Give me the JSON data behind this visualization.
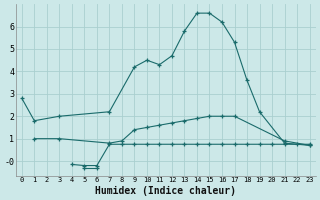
{
  "xlabel": "Humidex (Indice chaleur)",
  "bg_color": "#cce8e8",
  "grid_color": "#aacfcf",
  "line_color": "#1a6b6b",
  "xlim": [
    -0.5,
    23.5
  ],
  "ylim": [
    -0.65,
    7.0
  ],
  "yticks": [
    0,
    1,
    2,
    3,
    4,
    5,
    6
  ],
  "ytick_labels": [
    "-0",
    "1",
    "2",
    "3",
    "4",
    "5",
    "6"
  ],
  "xticks": [
    0,
    1,
    2,
    3,
    4,
    5,
    6,
    7,
    8,
    9,
    10,
    11,
    12,
    13,
    14,
    15,
    16,
    17,
    18,
    19,
    20,
    21,
    22,
    23
  ],
  "series": [
    {
      "x": [
        0,
        1,
        3,
        7,
        9,
        10,
        11,
        12,
        13,
        14,
        15,
        16,
        17,
        18,
        19,
        21,
        23
      ],
      "y": [
        2.8,
        1.8,
        2.0,
        2.2,
        4.2,
        4.5,
        4.3,
        4.7,
        5.8,
        6.6,
        6.6,
        6.2,
        5.3,
        3.6,
        2.2,
        0.8,
        0.7
      ]
    },
    {
      "x": [
        1,
        3,
        7,
        8,
        9,
        10,
        11,
        12,
        13,
        14,
        15,
        16,
        17,
        21,
        23
      ],
      "y": [
        1.0,
        1.0,
        0.8,
        0.9,
        1.4,
        1.5,
        1.6,
        1.7,
        1.8,
        1.9,
        2.0,
        2.0,
        2.0,
        0.9,
        0.7
      ]
    },
    {
      "x": [
        5,
        6
      ],
      "y": [
        -0.3,
        -0.3
      ]
    },
    {
      "x": [
        4,
        5,
        6,
        7,
        8,
        9,
        10,
        11,
        12,
        13,
        14,
        15,
        16,
        17,
        18,
        19,
        20,
        21,
        22,
        23
      ],
      "y": [
        -0.15,
        -0.2,
        -0.2,
        0.75,
        0.75,
        0.75,
        0.75,
        0.75,
        0.75,
        0.75,
        0.75,
        0.75,
        0.75,
        0.75,
        0.75,
        0.75,
        0.75,
        0.75,
        0.75,
        0.75
      ]
    }
  ]
}
